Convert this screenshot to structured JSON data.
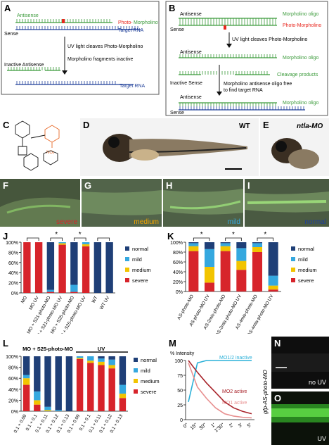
{
  "panel_letters": {
    "A": "A",
    "B": "B",
    "C": "C",
    "D": "D",
    "E": "E",
    "F": "F",
    "G": "G",
    "H": "H",
    "I": "I",
    "J": "J",
    "K": "K",
    "L": "L",
    "M": "M",
    "N": "N",
    "O": "O"
  },
  "panel_a": {
    "antisense": "Antisense",
    "photo": "Photo-",
    "morpholino": "Morpholino",
    "target_rna": "Target RNA",
    "sense": "Sense",
    "uv_cleaves": "UV light cleaves Photo-Morpholino",
    "fragments_inactive": "Morpholino fragments inactive",
    "inactive_antisense": "Inactive Antisense",
    "target_rna_2": "Target RNA"
  },
  "panel_b": {
    "antisense": "Antisense",
    "morpholino_oligo": "Morpholino oligo",
    "photo_morpholino": "Photo-Morpholino",
    "sense": "Sense",
    "uv_cleaves": "UV light cleaves Photo-Morpholino",
    "antisense_2": "Antisense",
    "morpholino_oligo_2": "Morpholino oligo",
    "inactive_sense": "Inactive Sense",
    "cleavage_products": "Cleavage products",
    "free_line1": "Morpholino antisense oligo free",
    "free_line2": "to find target RNA",
    "antisense_3": "Antisense",
    "morpholino_oligo_3": "Morpholino oligo",
    "sense_3": "Sense"
  },
  "panel_c": {
    "no2": "NO₂"
  },
  "panel_d": {
    "label": "WT"
  },
  "panel_e": {
    "label": "ntla-MO"
  },
  "phenotypes": {
    "F": "severe",
    "G": "medium",
    "H": "mild",
    "I": "normal"
  },
  "panel_m": {
    "ylabel": "% Intensity",
    "inactive": "MO1/2 inactive",
    "mo2": "MO2 active",
    "mo1": "MO1 active"
  },
  "panel_no": {
    "side_label": "gfp-AS-photo-MO",
    "n_label": "no UV",
    "o_label": "UV"
  },
  "colors": {
    "normal": "#1f3f77",
    "mild": "#35a8df",
    "medium": "#f2c400",
    "severe": "#d7242b",
    "antisense": "#3a9a3a",
    "target": "#1f3f99",
    "photo": "#e8261e"
  },
  "chart_data": [
    {
      "panel": "J",
      "type": "bar",
      "stacked": true,
      "categories": [
        "MO",
        "MO UV",
        "MO + S21-photo-MO",
        "MO + S21-photo-MO UV",
        "MO + S25-photo-MO",
        "MO + S25-photo-MO UV",
        "WT",
        "WT UV"
      ],
      "series": [
        {
          "name": "severe",
          "values": [
            100,
            100,
            2,
            95,
            2,
            92,
            0,
            0
          ]
        },
        {
          "name": "medium",
          "values": [
            0,
            0,
            0,
            3,
            0,
            4,
            0,
            0
          ]
        },
        {
          "name": "mild",
          "values": [
            0,
            0,
            4,
            2,
            14,
            4,
            0,
            0
          ]
        },
        {
          "name": "normal",
          "values": [
            0,
            0,
            94,
            0,
            84,
            0,
            100,
            100
          ]
        }
      ],
      "yticks": [
        "0%",
        "20%",
        "40%",
        "60%",
        "80%",
        "100%"
      ],
      "ylim": [
        0,
        100
      ],
      "significance": [
        "*",
        "*"
      ],
      "legend": [
        "normal",
        "mild",
        "medium",
        "severe"
      ]
    },
    {
      "panel": "K",
      "type": "bar",
      "stacked": true,
      "categories": [
        "AS-photo-MO",
        "AS-photo-MO UV",
        "AS-2mis-photo-MO",
        "AS-2mis-photo-MO UV",
        "AS-4mis-photo-MO",
        "AS-4mis-photo-MO UV"
      ],
      "series": [
        {
          "name": "severe",
          "values": [
            82,
            18,
            82,
            44,
            80,
            4
          ]
        },
        {
          "name": "medium",
          "values": [
            10,
            32,
            10,
            18,
            10,
            8
          ]
        },
        {
          "name": "mild",
          "values": [
            6,
            36,
            6,
            26,
            8,
            20
          ]
        },
        {
          "name": "normal",
          "values": [
            2,
            14,
            2,
            12,
            2,
            68
          ]
        }
      ],
      "yticks": [
        "0%",
        "20%",
        "40%",
        "60%",
        "80%",
        "100%"
      ],
      "ylim": [
        0,
        100
      ],
      "significance": [
        "*",
        "*",
        "*"
      ],
      "legend": [
        "normal",
        "mild",
        "medium",
        "severe"
      ]
    },
    {
      "panel": "L",
      "type": "bar",
      "stacked": true,
      "group_labels": [
        "MO + S25-photo-MO",
        "UV"
      ],
      "categories": [
        "0.1 + 0.09",
        "0.1 + 0.1",
        "0.1 + 0.11",
        "0.1 + 0.12",
        "0.1 + 0.13",
        "0.1 + 0.09",
        "0.1 + 0.1",
        "0.1 + 0.11",
        "0.1 + 0.12",
        "0.1 + 0.13"
      ],
      "series": [
        {
          "name": "severe",
          "values": [
            48,
            12,
            0,
            0,
            0,
            95,
            88,
            84,
            78,
            24
          ]
        },
        {
          "name": "medium",
          "values": [
            12,
            8,
            2,
            0,
            0,
            2,
            4,
            6,
            6,
            8
          ]
        },
        {
          "name": "mild",
          "values": [
            6,
            16,
            6,
            2,
            0,
            3,
            8,
            6,
            10,
            16
          ]
        },
        {
          "name": "normal",
          "values": [
            34,
            64,
            92,
            98,
            100,
            0,
            0,
            4,
            6,
            52
          ]
        }
      ],
      "yticks": [
        "0%",
        "20%",
        "40%",
        "60%",
        "80%",
        "100%"
      ],
      "ylim": [
        0,
        100
      ],
      "legend": [
        "normal",
        "mild",
        "medium",
        "severe"
      ]
    },
    {
      "panel": "M",
      "type": "line",
      "ylabel": "% Intensity",
      "x": [
        "0''",
        "15''",
        "30''",
        "1'",
        "1'30''",
        "2'",
        "3'",
        "5'"
      ],
      "yticks": [
        "0",
        "25",
        "50",
        "75",
        "100"
      ],
      "ylim": [
        0,
        100
      ],
      "series": [
        {
          "name": "MO1/2 inactive",
          "color": "#2ab0d8",
          "values": [
            30,
            96,
            100,
            100,
            100,
            100,
            100,
            100
          ]
        },
        {
          "name": "MO2 active",
          "color": "#a8232a",
          "values": [
            100,
            80,
            62,
            46,
            30,
            20,
            14,
            10
          ]
        },
        {
          "name": "MO1 active",
          "color": "#e89090",
          "values": [
            96,
            55,
            36,
            20,
            10,
            6,
            4,
            3
          ]
        }
      ]
    }
  ]
}
